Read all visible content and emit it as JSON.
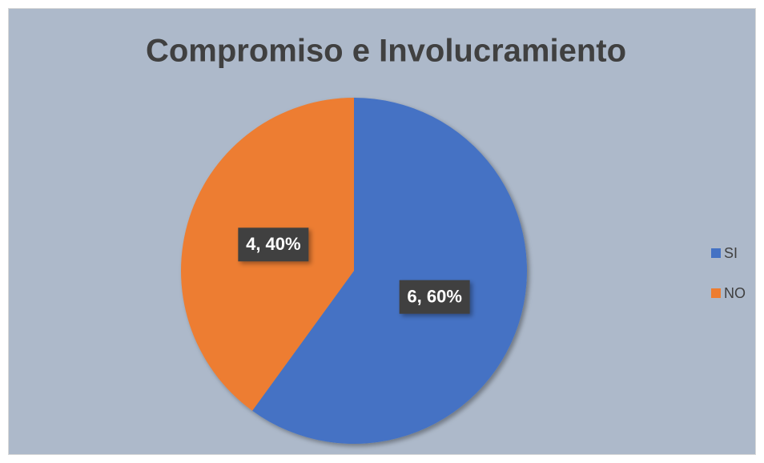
{
  "chart_data": {
    "type": "pie",
    "title": "Compromiso e Involucramiento",
    "categories": [
      "SI",
      "NO"
    ],
    "values": [
      6,
      4
    ],
    "value_labels": [
      "6, 60%",
      "4, 40%"
    ],
    "colors": [
      "#4472c4",
      "#ed7d31"
    ],
    "legend": "right"
  }
}
